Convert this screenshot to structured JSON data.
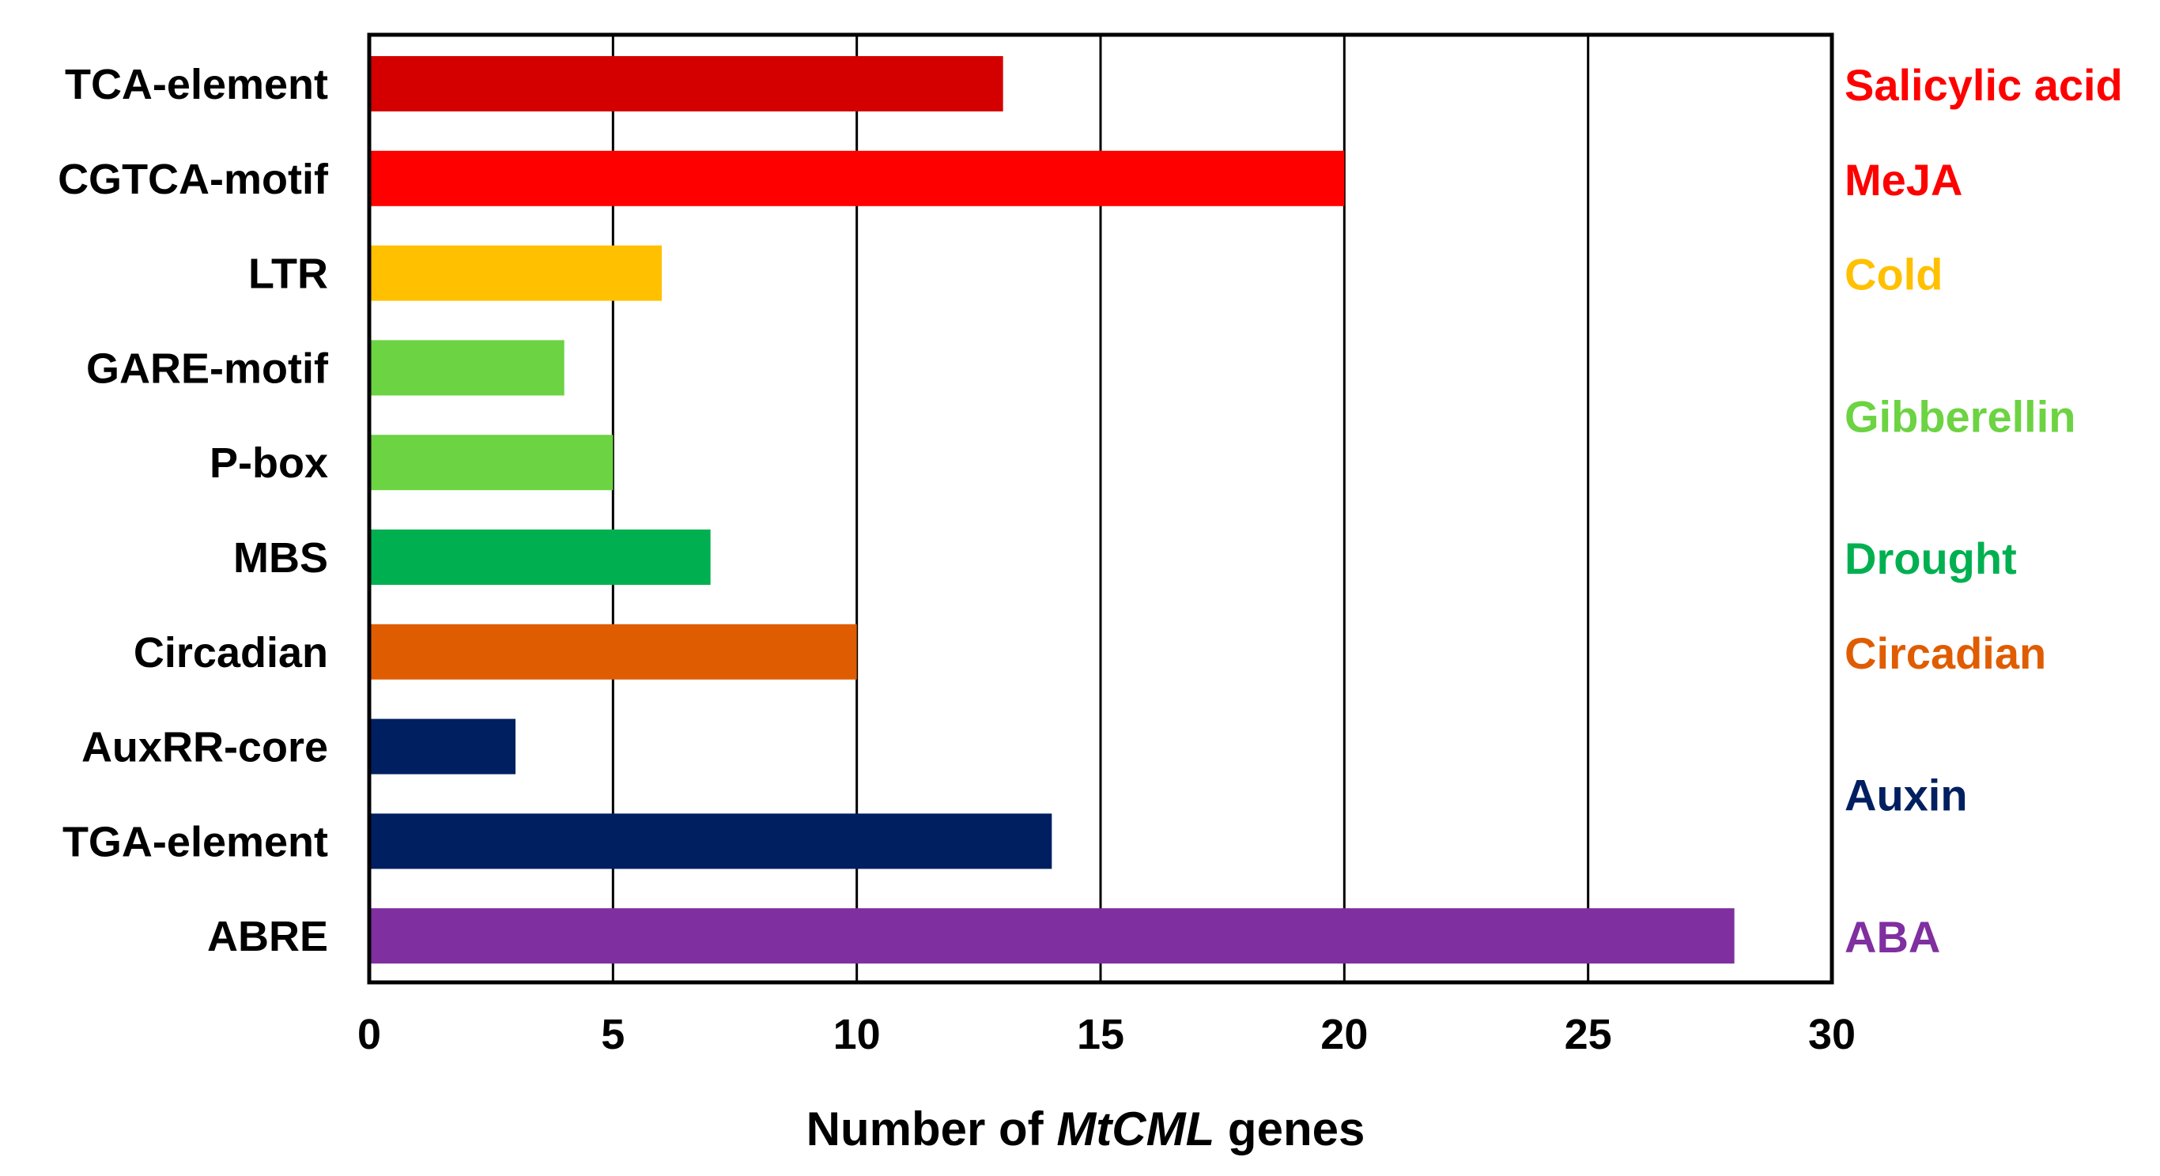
{
  "chart_data": {
    "type": "bar",
    "orientation": "horizontal",
    "title": "",
    "xlabel": {
      "prefix": "Number of ",
      "italic": "MtCML",
      "suffix": " genes"
    },
    "ylabel": "",
    "xlim": [
      0,
      30
    ],
    "xticks": [
      0,
      5,
      10,
      15,
      20,
      25,
      30
    ],
    "grid": "vertical",
    "categories": [
      "TCA-element",
      "CGTCA-motif",
      "LTR",
      "GARE-motif",
      "P-box",
      "MBS",
      "Circadian",
      "AuxRR-core",
      "TGA-element",
      "ABRE"
    ],
    "values": [
      13,
      20,
      6,
      4,
      5,
      7,
      10,
      3,
      14,
      28
    ],
    "bar_colors": [
      "#D40000",
      "#FF0000",
      "#FFC000",
      "#6CD342",
      "#6CD342",
      "#00B050",
      "#E05C00",
      "#001F60",
      "#001F60",
      "#7F2FA0"
    ],
    "groups": [
      {
        "label": "Salicylic acid",
        "color": "#FF0000",
        "categories": [
          "TCA-element"
        ]
      },
      {
        "label": "MeJA",
        "color": "#FF0000",
        "categories": [
          "CGTCA-motif"
        ]
      },
      {
        "label": "Cold",
        "color": "#FFC000",
        "categories": [
          "LTR"
        ]
      },
      {
        "label": "Gibberellin",
        "color": "#6CD342",
        "categories": [
          "GARE-motif",
          "P-box"
        ]
      },
      {
        "label": "Drought",
        "color": "#00B050",
        "categories": [
          "MBS"
        ]
      },
      {
        "label": "Circadian",
        "color": "#E05C00",
        "categories": [
          "Circadian"
        ]
      },
      {
        "label": "Auxin",
        "color": "#001F60",
        "categories": [
          "AuxRR-core",
          "TGA-element"
        ]
      },
      {
        "label": "ABA",
        "color": "#7F2FA0",
        "categories": [
          "ABRE"
        ]
      }
    ]
  }
}
